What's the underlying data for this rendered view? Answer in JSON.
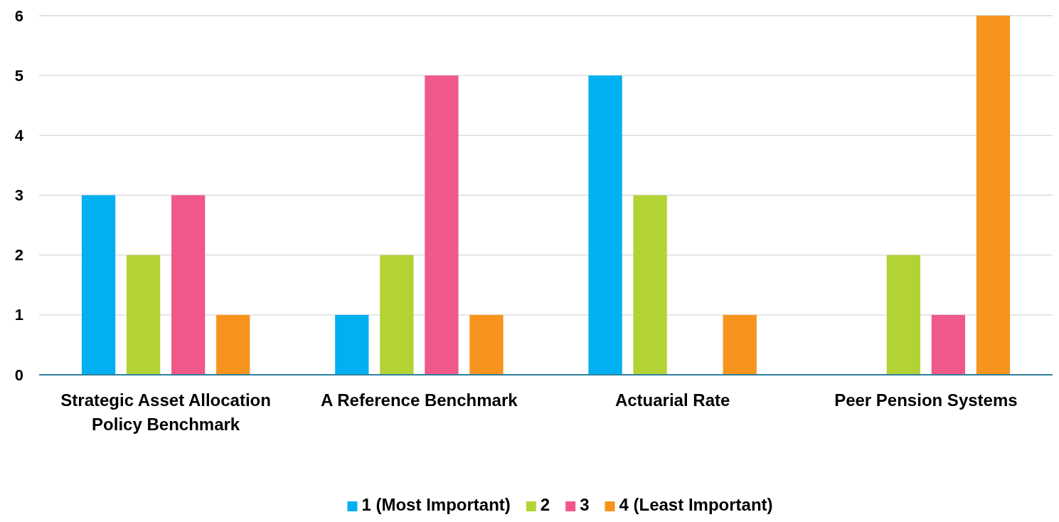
{
  "chart_data": {
    "type": "bar",
    "categories": [
      "Strategic Asset Allocation Policy Benchmark",
      "A Reference Benchmark",
      "Actuarial Rate",
      "Peer Pension Systems"
    ],
    "series": [
      {
        "name": "1 (Most Important)",
        "color": "#00b0f0",
        "values": [
          3,
          1,
          5,
          0
        ]
      },
      {
        "name": "2",
        "color": "#b3d335",
        "values": [
          2,
          2,
          3,
          2
        ]
      },
      {
        "name": "3",
        "color": "#f0588a",
        "values": [
          3,
          5,
          0,
          1
        ]
      },
      {
        "name": "4 (Least Important)",
        "color": "#f7941d",
        "values": [
          1,
          1,
          1,
          6
        ]
      }
    ],
    "ylim": [
      0,
      6
    ],
    "yticks": [
      0,
      1,
      2,
      3,
      4,
      5,
      6
    ],
    "grid": "y",
    "legend": "bottom"
  }
}
